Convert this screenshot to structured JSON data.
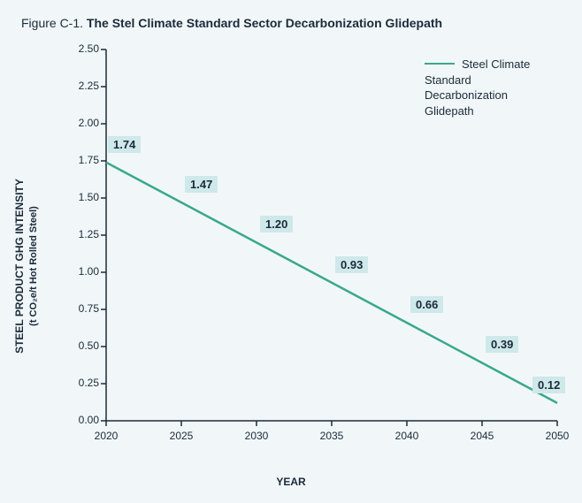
{
  "title": {
    "prefix": "Figure C-1.",
    "main": "The Stel Climate Standard Sector Decarbonization Glidepath"
  },
  "chart": {
    "type": "line",
    "background_color": "#f1f7f8",
    "line_color": "#3aa88f",
    "line_width": 2.5,
    "axis_color": "#1a2a3a",
    "axis_width": 1.5,
    "x": {
      "label": "YEAR",
      "min": 2020,
      "max": 2050,
      "ticks": [
        2020,
        2025,
        2030,
        2035,
        2040,
        2045,
        2050
      ]
    },
    "y": {
      "label_line1": "STEEL PRODUCT GHG INTENSITY",
      "label_line2": "(t CO₂e/t Hot Rolled Steel)",
      "min": 0.0,
      "max": 2.5,
      "ticks": [
        "0.00",
        "0.25",
        "0.50",
        "0.75",
        "1.00",
        "1.25",
        "1.50",
        "1.75",
        "2.00",
        "2.25",
        "2.50"
      ]
    },
    "series": {
      "name": "Steel Climate Standard Decarbonization Glidepath",
      "points": [
        {
          "x": 2020,
          "y": 1.74,
          "label": "1.74"
        },
        {
          "x": 2025,
          "y": 1.47,
          "label": "1.47"
        },
        {
          "x": 2030,
          "y": 1.2,
          "label": "1.20"
        },
        {
          "x": 2035,
          "y": 0.93,
          "label": "0.93"
        },
        {
          "x": 2040,
          "y": 0.66,
          "label": "0.66"
        },
        {
          "x": 2045,
          "y": 0.39,
          "label": "0.39"
        },
        {
          "x": 2050,
          "y": 0.12,
          "label": "0.12"
        }
      ]
    },
    "data_label_bg": "#cfe8ea",
    "data_label_fontsize": 13,
    "tick_fontsize": 12,
    "title_fontsize": 14
  },
  "legend": {
    "text": "Steel Climate Standard Decarbonization Glidepath"
  }
}
